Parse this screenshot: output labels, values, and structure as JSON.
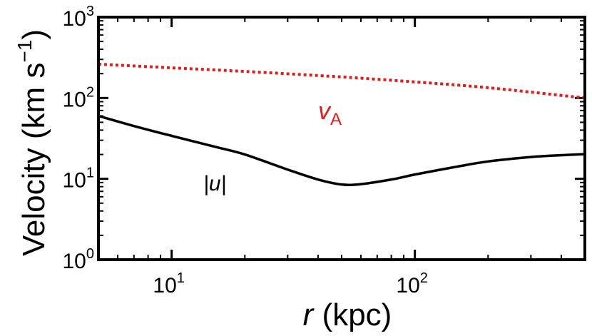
{
  "chart_data": {
    "type": "line",
    "xscale": "log",
    "yscale": "log",
    "xlim": [
      5,
      500
    ],
    "ylim": [
      1,
      1000
    ],
    "xlabel": {
      "italic": "r",
      "rest": " (kpc)"
    },
    "ylabel": {
      "text": "Velocity (km s",
      "sup": "−1",
      "close": ")"
    },
    "x_ticks": [
      {
        "value": 10,
        "base": "10",
        "exp": "1"
      },
      {
        "value": 100,
        "base": "10",
        "exp": "2"
      }
    ],
    "y_ticks": [
      {
        "value": 1,
        "base": "10",
        "exp": "0"
      },
      {
        "value": 10,
        "base": "10",
        "exp": "1"
      },
      {
        "value": 100,
        "base": "10",
        "exp": "2"
      },
      {
        "value": 1000,
        "base": "10",
        "exp": "3"
      }
    ],
    "series": [
      {
        "key": "u",
        "label": "|u|",
        "color": "#000000",
        "style": "solid",
        "x": [
          5,
          7,
          10,
          15,
          20,
          30,
          40,
          50,
          60,
          80,
          100,
          150,
          200,
          300,
          400,
          500
        ],
        "y": [
          60,
          45,
          34,
          25,
          20,
          13,
          9.8,
          8.5,
          8.6,
          9.8,
          11.3,
          14.2,
          16.4,
          18.6,
          19.6,
          20.2
        ]
      },
      {
        "key": "vA",
        "label_main": "v",
        "label_sub": "A",
        "color": "#e41a1c",
        "style": "dotted",
        "x": [
          5,
          10,
          20,
          50,
          100,
          200,
          500
        ],
        "y": [
          262,
          236,
          213,
          182,
          158,
          134,
          100
        ]
      }
    ],
    "annotations": {
      "u_label": "|u|",
      "vA_main": "v",
      "vA_sub": "A"
    }
  }
}
